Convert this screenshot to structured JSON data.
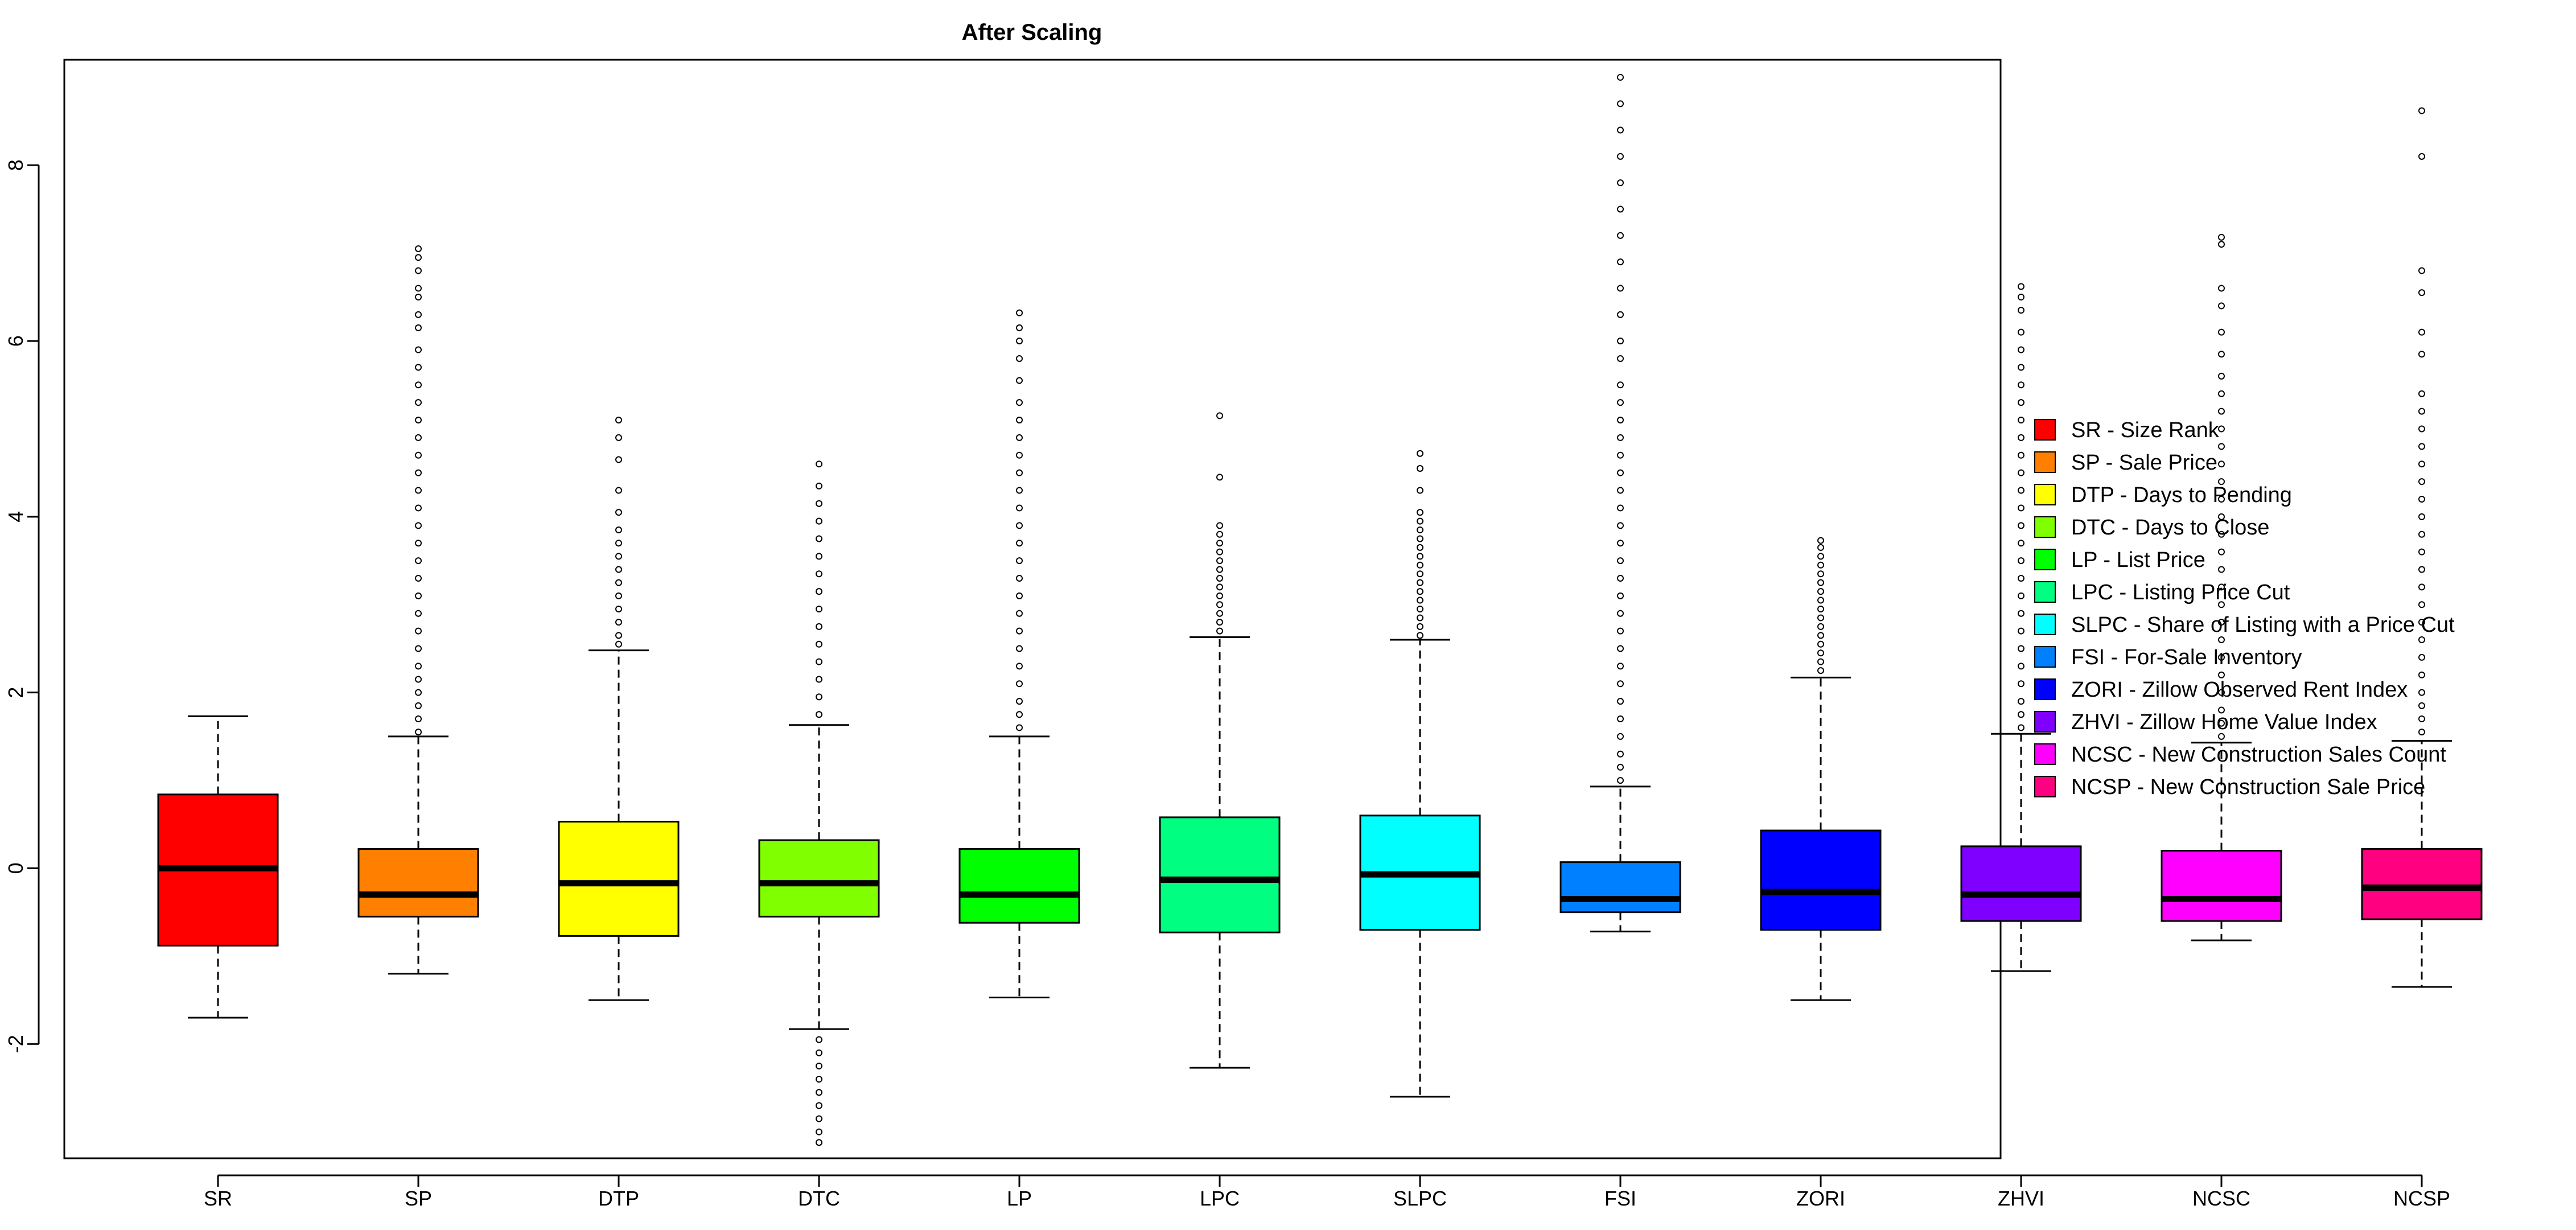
{
  "chart_data": {
    "type": "boxplot",
    "title": "After Scaling",
    "xlabel": "",
    "ylabel": "",
    "ylim": [
      -3.3,
      9.2
    ],
    "y_ticks": [
      -2,
      0,
      2,
      4,
      6,
      8
    ],
    "y_tick_labels": [
      "-2",
      "0",
      "2",
      "4",
      "6",
      "8"
    ],
    "grid": false,
    "legend_position": "right",
    "boxes": [
      {
        "label": "SR",
        "color": "#FF0000",
        "whisker_low": -1.7,
        "q1": -0.88,
        "median": 0.0,
        "q3": 0.84,
        "whisker_high": 1.73,
        "outliers": []
      },
      {
        "label": "SP",
        "color": "#FF8000",
        "whisker_low": -1.2,
        "q1": -0.55,
        "median": -0.3,
        "q3": 0.22,
        "whisker_high": 1.5,
        "outliers": [
          1.55,
          1.7,
          1.85,
          2.0,
          2.15,
          2.3,
          2.5,
          2.7,
          2.9,
          3.1,
          3.3,
          3.5,
          3.7,
          3.9,
          4.1,
          4.3,
          4.5,
          4.7,
          4.9,
          5.1,
          5.3,
          5.5,
          5.7,
          5.9,
          6.15,
          6.3,
          6.5,
          6.6,
          6.8,
          6.95,
          7.05
        ]
      },
      {
        "label": "DTP",
        "color": "#FFFF00",
        "whisker_low": -1.5,
        "q1": -0.77,
        "median": -0.17,
        "q3": 0.53,
        "whisker_high": 2.48,
        "outliers": [
          2.55,
          2.65,
          2.8,
          2.95,
          3.1,
          3.25,
          3.4,
          3.55,
          3.7,
          3.85,
          4.05,
          4.3,
          4.65,
          4.9,
          5.1
        ]
      },
      {
        "label": "DTC",
        "color": "#80FF00",
        "whisker_low": -1.83,
        "q1": -0.55,
        "median": -0.17,
        "q3": 0.32,
        "whisker_high": 1.63,
        "outliers": [
          1.75,
          1.95,
          2.15,
          2.35,
          2.55,
          2.75,
          2.95,
          3.15,
          3.35,
          3.55,
          3.75,
          3.95,
          4.15,
          4.35,
          4.6,
          -1.95,
          -2.1,
          -2.25,
          -2.4,
          -2.55,
          -2.7,
          -2.85,
          -3.0,
          -3.12
        ]
      },
      {
        "label": "LP",
        "color": "#00FF00",
        "whisker_low": -1.47,
        "q1": -0.62,
        "median": -0.3,
        "q3": 0.22,
        "whisker_high": 1.5,
        "outliers": [
          1.6,
          1.75,
          1.9,
          2.1,
          2.3,
          2.5,
          2.7,
          2.9,
          3.1,
          3.3,
          3.5,
          3.7,
          3.9,
          4.1,
          4.3,
          4.5,
          4.7,
          4.9,
          5.1,
          5.3,
          5.55,
          5.8,
          6.0,
          6.15,
          6.32
        ]
      },
      {
        "label": "LPC",
        "color": "#00FF80",
        "whisker_low": -2.27,
        "q1": -0.73,
        "median": -0.13,
        "q3": 0.58,
        "whisker_high": 2.63,
        "outliers": [
          2.7,
          2.8,
          2.9,
          3.0,
          3.1,
          3.2,
          3.3,
          3.4,
          3.5,
          3.6,
          3.7,
          3.8,
          3.9,
          4.45,
          5.15
        ]
      },
      {
        "label": "SLPC",
        "color": "#00FFFF",
        "whisker_low": -2.6,
        "q1": -0.7,
        "median": -0.07,
        "q3": 0.6,
        "whisker_high": 2.6,
        "outliers": [
          2.65,
          2.75,
          2.85,
          2.95,
          3.05,
          3.15,
          3.25,
          3.35,
          3.45,
          3.55,
          3.65,
          3.75,
          3.85,
          3.95,
          4.05,
          4.3,
          4.55,
          4.72
        ]
      },
      {
        "label": "FSI",
        "color": "#0080FF",
        "whisker_low": -0.72,
        "q1": -0.5,
        "median": -0.35,
        "q3": 0.07,
        "whisker_high": 0.93,
        "outliers": [
          1.0,
          1.15,
          1.3,
          1.5,
          1.7,
          1.9,
          2.1,
          2.3,
          2.5,
          2.7,
          2.9,
          3.1,
          3.3,
          3.5,
          3.7,
          3.9,
          4.1,
          4.3,
          4.5,
          4.7,
          4.9,
          5.1,
          5.3,
          5.5,
          5.8,
          6.0,
          6.3,
          6.6,
          6.9,
          7.2,
          7.5,
          7.8,
          8.1,
          8.4,
          8.7,
          9.0
        ]
      },
      {
        "label": "ZORI",
        "color": "#0000FF",
        "whisker_low": -1.5,
        "q1": -0.7,
        "median": -0.27,
        "q3": 0.43,
        "whisker_high": 2.17,
        "outliers": [
          2.25,
          2.35,
          2.45,
          2.55,
          2.65,
          2.75,
          2.85,
          2.95,
          3.05,
          3.15,
          3.25,
          3.35,
          3.45,
          3.55,
          3.65,
          3.73
        ]
      },
      {
        "label": "ZHVI",
        "color": "#8000FF",
        "whisker_low": -1.17,
        "q1": -0.6,
        "median": -0.3,
        "q3": 0.25,
        "whisker_high": 1.53,
        "outliers": [
          1.6,
          1.75,
          1.9,
          2.1,
          2.3,
          2.5,
          2.7,
          2.9,
          3.1,
          3.3,
          3.5,
          3.7,
          3.9,
          4.1,
          4.3,
          4.5,
          4.7,
          4.9,
          5.1,
          5.3,
          5.5,
          5.7,
          5.9,
          6.1,
          6.35,
          6.5,
          6.62
        ]
      },
      {
        "label": "NCSC",
        "color": "#FF00FF",
        "whisker_low": -0.82,
        "q1": -0.6,
        "median": -0.35,
        "q3": 0.2,
        "whisker_high": 1.43,
        "outliers": [
          1.5,
          1.65,
          1.8,
          2.0,
          2.2,
          2.4,
          2.6,
          2.8,
          3.0,
          3.2,
          3.4,
          3.6,
          3.8,
          4.0,
          4.2,
          4.4,
          4.6,
          4.8,
          5.0,
          5.2,
          5.4,
          5.6,
          5.85,
          6.1,
          6.4,
          6.6,
          7.1,
          7.18
        ]
      },
      {
        "label": "NCSP",
        "color": "#FF0080",
        "whisker_low": -1.35,
        "q1": -0.58,
        "median": -0.22,
        "q3": 0.22,
        "whisker_high": 1.45,
        "outliers": [
          1.55,
          1.7,
          1.85,
          2.0,
          2.2,
          2.4,
          2.6,
          2.8,
          3.0,
          3.2,
          3.4,
          3.6,
          3.8,
          4.0,
          4.2,
          4.4,
          4.6,
          4.8,
          5.0,
          5.2,
          5.4,
          5.85,
          6.1,
          6.55,
          6.8,
          8.1,
          8.62
        ]
      }
    ],
    "legend": [
      {
        "label": "SR - Size Rank",
        "color": "#FF0000"
      },
      {
        "label": "SP - Sale Price",
        "color": "#FF8000"
      },
      {
        "label": "DTP - Days to Pending",
        "color": "#FFFF00"
      },
      {
        "label": "DTC - Days to Close",
        "color": "#80FF00"
      },
      {
        "label": "LP - List Price",
        "color": "#00FF00"
      },
      {
        "label": "LPC - Listing Price Cut",
        "color": "#00FF80"
      },
      {
        "label": "SLPC - Share of Listing with a Price Cut",
        "color": "#00FFFF"
      },
      {
        "label": "FSI - For-Sale Inventory",
        "color": "#0080FF"
      },
      {
        "label": "ZORI - Zillow Observed Rent Index",
        "color": "#0000FF"
      },
      {
        "label": "ZHVI - Zillow Home Value Index",
        "color": "#8000FF"
      },
      {
        "label": "NCSC - New Construction Sales Count",
        "color": "#FF00FF"
      },
      {
        "label": "NCSP - New Construction Sale Price",
        "color": "#FF0080"
      }
    ]
  }
}
